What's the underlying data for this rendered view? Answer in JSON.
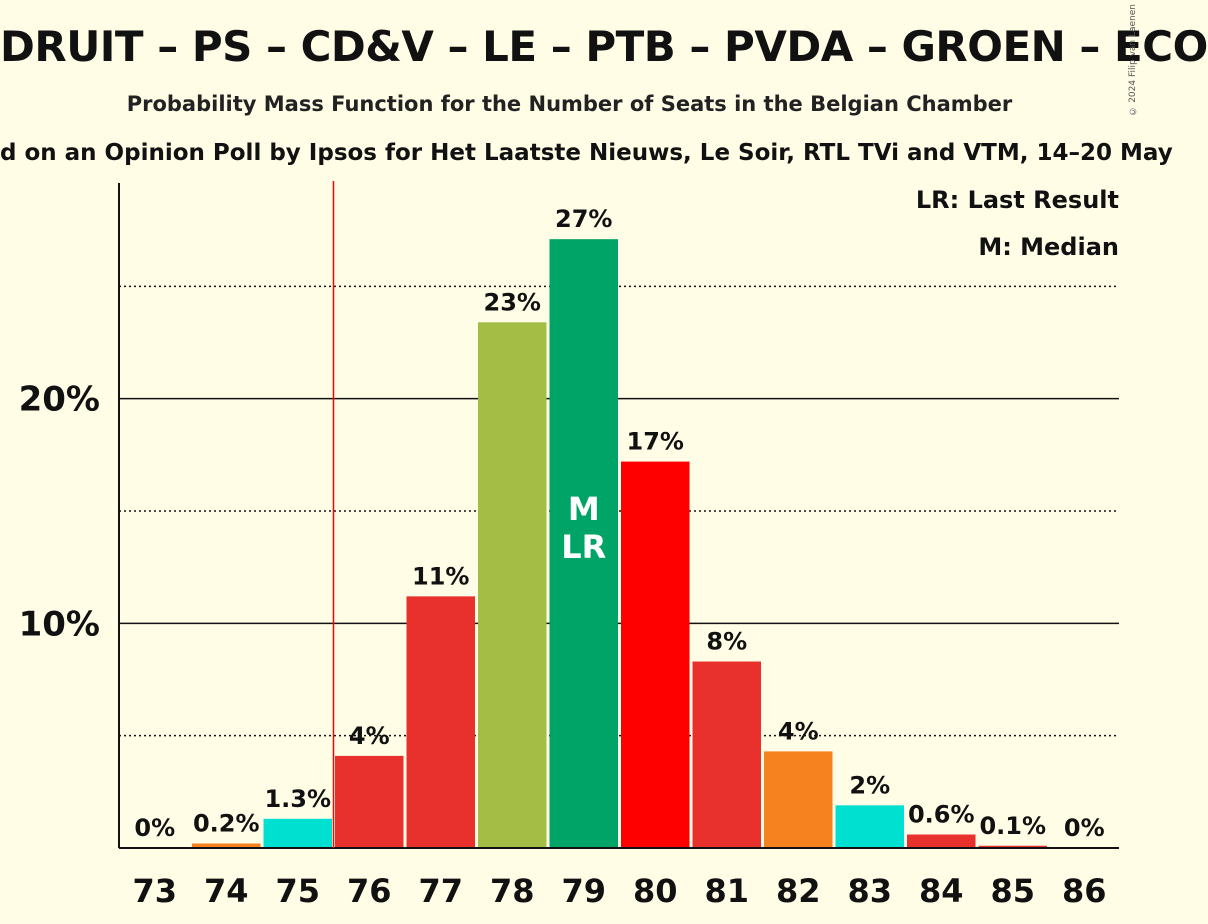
{
  "title": "DRUIT – PS – CD&V – LE – PTB – PVDA – GROEN – ECO",
  "subtitle": "Probability Mass Function for the Number of Seats in the Belgian Chamber",
  "source": "d on an Opinion Poll by Ipsos for Het Laatste Nieuws, Le Soir, RTL TVi and VTM, 14–20 May",
  "copyright": "© 2024 Filip van Laenen",
  "legend": {
    "last_result": "LR: Last Result",
    "median": "M: Median"
  },
  "chart_data": {
    "type": "bar",
    "categories": [
      "73",
      "74",
      "75",
      "76",
      "77",
      "78",
      "79",
      "80",
      "81",
      "82",
      "83",
      "84",
      "85",
      "86"
    ],
    "values": [
      0,
      0.2,
      1.3,
      4.1,
      11.2,
      23.4,
      27.1,
      17.2,
      8.3,
      4.3,
      1.9,
      0.6,
      0.1,
      0
    ],
    "data_labels": [
      "0%",
      "0.2%",
      "1.3%",
      "4%",
      "11%",
      "23%",
      "27%",
      "17%",
      "8%",
      "4%",
      "2%",
      "0.6%",
      "0.1%",
      "0%"
    ],
    "colors": [
      "#e8302c",
      "#f5821f",
      "#00e0d0",
      "#e8302c",
      "#e8302c",
      "#a4be45",
      "#00a466",
      "#ff0000",
      "#e8302c",
      "#f5821f",
      "#00e0d0",
      "#e8302c",
      "#e8302c",
      "#e8302c"
    ],
    "yticks": [
      {
        "value": 10,
        "label": "10%"
      },
      {
        "value": 20,
        "label": "20%"
      }
    ],
    "minor_gridlines": [
      5,
      15,
      25
    ],
    "ylim": [
      0,
      29.6
    ],
    "last_result_line_x": 75.5,
    "median_category": "79",
    "median_marker": "M",
    "last_result_category": "79",
    "last_result_marker": "LR",
    "last_result_line_color": "#ff0000"
  }
}
